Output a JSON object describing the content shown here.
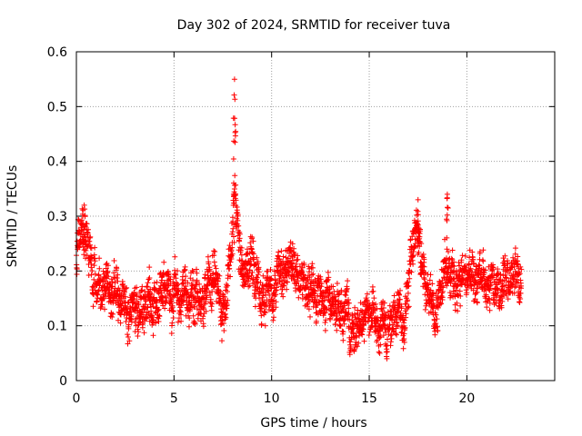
{
  "chart_data": {
    "type": "scatter",
    "title": "Day 302 of 2024, SRMTID for receiver tuva",
    "xlabel": "GPS time / hours",
    "ylabel": "SRMTID / TECUs",
    "xlim": [
      0,
      24.5
    ],
    "ylim": [
      0,
      0.6
    ],
    "x_ticks": [
      0,
      5,
      10,
      15,
      20
    ],
    "y_ticks": [
      0,
      0.1,
      0.2,
      0.3,
      0.4,
      0.5,
      0.6
    ],
    "grid": true,
    "marker": "+",
    "marker_color": "#ff0000",
    "series": [
      {
        "name": "SRMTID",
        "sampling_interval_hours": 0.0083,
        "x_range": [
          0,
          22.8
        ],
        "trend": [
          [
            0.0,
            0.23
          ],
          [
            0.1,
            0.26
          ],
          [
            0.3,
            0.28
          ],
          [
            0.5,
            0.26
          ],
          [
            0.7,
            0.22
          ],
          [
            1.0,
            0.19
          ],
          [
            1.5,
            0.17
          ],
          [
            2.0,
            0.16
          ],
          [
            2.5,
            0.14
          ],
          [
            3.0,
            0.12
          ],
          [
            3.5,
            0.13
          ],
          [
            4.0,
            0.14
          ],
          [
            4.5,
            0.17
          ],
          [
            5.0,
            0.15
          ],
          [
            5.5,
            0.15
          ],
          [
            6.0,
            0.14
          ],
          [
            6.5,
            0.14
          ],
          [
            7.0,
            0.2
          ],
          [
            7.5,
            0.13
          ],
          [
            7.8,
            0.18
          ],
          [
            8.0,
            0.28
          ],
          [
            8.1,
            0.4
          ],
          [
            8.2,
            0.3
          ],
          [
            8.5,
            0.2
          ],
          [
            9.0,
            0.2
          ],
          [
            9.5,
            0.16
          ],
          [
            10.0,
            0.15
          ],
          [
            10.5,
            0.2
          ],
          [
            11.0,
            0.18
          ],
          [
            11.5,
            0.17
          ],
          [
            12.0,
            0.17
          ],
          [
            12.5,
            0.16
          ],
          [
            13.0,
            0.15
          ],
          [
            13.5,
            0.13
          ],
          [
            14.0,
            0.09
          ],
          [
            14.5,
            0.1
          ],
          [
            15.0,
            0.12
          ],
          [
            15.5,
            0.11
          ],
          [
            16.0,
            0.1
          ],
          [
            16.5,
            0.11
          ],
          [
            16.8,
            0.1
          ],
          [
            17.0,
            0.18
          ],
          [
            17.2,
            0.25
          ],
          [
            17.5,
            0.28
          ],
          [
            17.8,
            0.2
          ],
          [
            18.0,
            0.15
          ],
          [
            18.5,
            0.13
          ],
          [
            19.0,
            0.22
          ],
          [
            19.5,
            0.18
          ],
          [
            20.0,
            0.19
          ],
          [
            20.5,
            0.17
          ],
          [
            21.0,
            0.18
          ],
          [
            21.5,
            0.16
          ],
          [
            22.0,
            0.18
          ],
          [
            22.5,
            0.19
          ],
          [
            22.8,
            0.17
          ]
        ],
        "peaks": [
          {
            "x": 8.1,
            "y": 0.55
          },
          {
            "x": 0.4,
            "y": 0.32
          },
          {
            "x": 17.5,
            "y": 0.33
          },
          {
            "x": 19.0,
            "y": 0.34
          }
        ]
      }
    ]
  }
}
